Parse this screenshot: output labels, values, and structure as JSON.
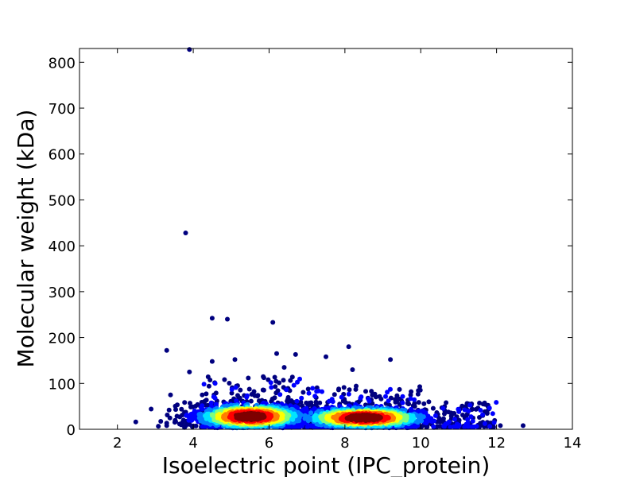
{
  "chart_data": {
    "type": "scatter",
    "xlabel": "Isoelectric point (IPC_protein)",
    "ylabel": "Molecular weight (kDa)",
    "xlim": [
      1,
      14
    ],
    "ylim": [
      0,
      830
    ],
    "xticks": [
      "2",
      "4",
      "6",
      "8",
      "10",
      "12",
      "14"
    ],
    "yticks": [
      "0",
      "100",
      "200",
      "300",
      "400",
      "500",
      "600",
      "700",
      "800"
    ],
    "grid": false,
    "colormap": "jet (point density)",
    "density_colors": [
      "#00007f",
      "#0000ff",
      "#007fff",
      "#00e5ff",
      "#7fff7f",
      "#ffff00",
      "#ff7f00",
      "#ff0000",
      "#7f0000"
    ],
    "clusters": [
      {
        "x_center": 5.5,
        "y_center": 28,
        "x_spread": 0.75,
        "y_spread": 14
      },
      {
        "x_center": 8.5,
        "y_center": 25,
        "x_spread": 0.85,
        "y_spread": 12
      }
    ],
    "outliers": [
      {
        "x": 3.9,
        "y": 828
      },
      {
        "x": 3.8,
        "y": 428
      },
      {
        "x": 4.5,
        "y": 242
      },
      {
        "x": 4.9,
        "y": 240
      },
      {
        "x": 6.1,
        "y": 233
      },
      {
        "x": 3.3,
        "y": 172
      },
      {
        "x": 8.1,
        "y": 180
      },
      {
        "x": 6.2,
        "y": 165
      },
      {
        "x": 6.7,
        "y": 163
      },
      {
        "x": 7.5,
        "y": 158
      },
      {
        "x": 9.2,
        "y": 152
      },
      {
        "x": 4.5,
        "y": 148
      },
      {
        "x": 5.1,
        "y": 152
      },
      {
        "x": 3.9,
        "y": 125
      },
      {
        "x": 8.2,
        "y": 130
      },
      {
        "x": 6.4,
        "y": 135
      },
      {
        "x": 12.7,
        "y": 8
      },
      {
        "x": 12.1,
        "y": 8
      },
      {
        "x": 3.3,
        "y": 8
      },
      {
        "x": 3.4,
        "y": 75
      }
    ]
  }
}
